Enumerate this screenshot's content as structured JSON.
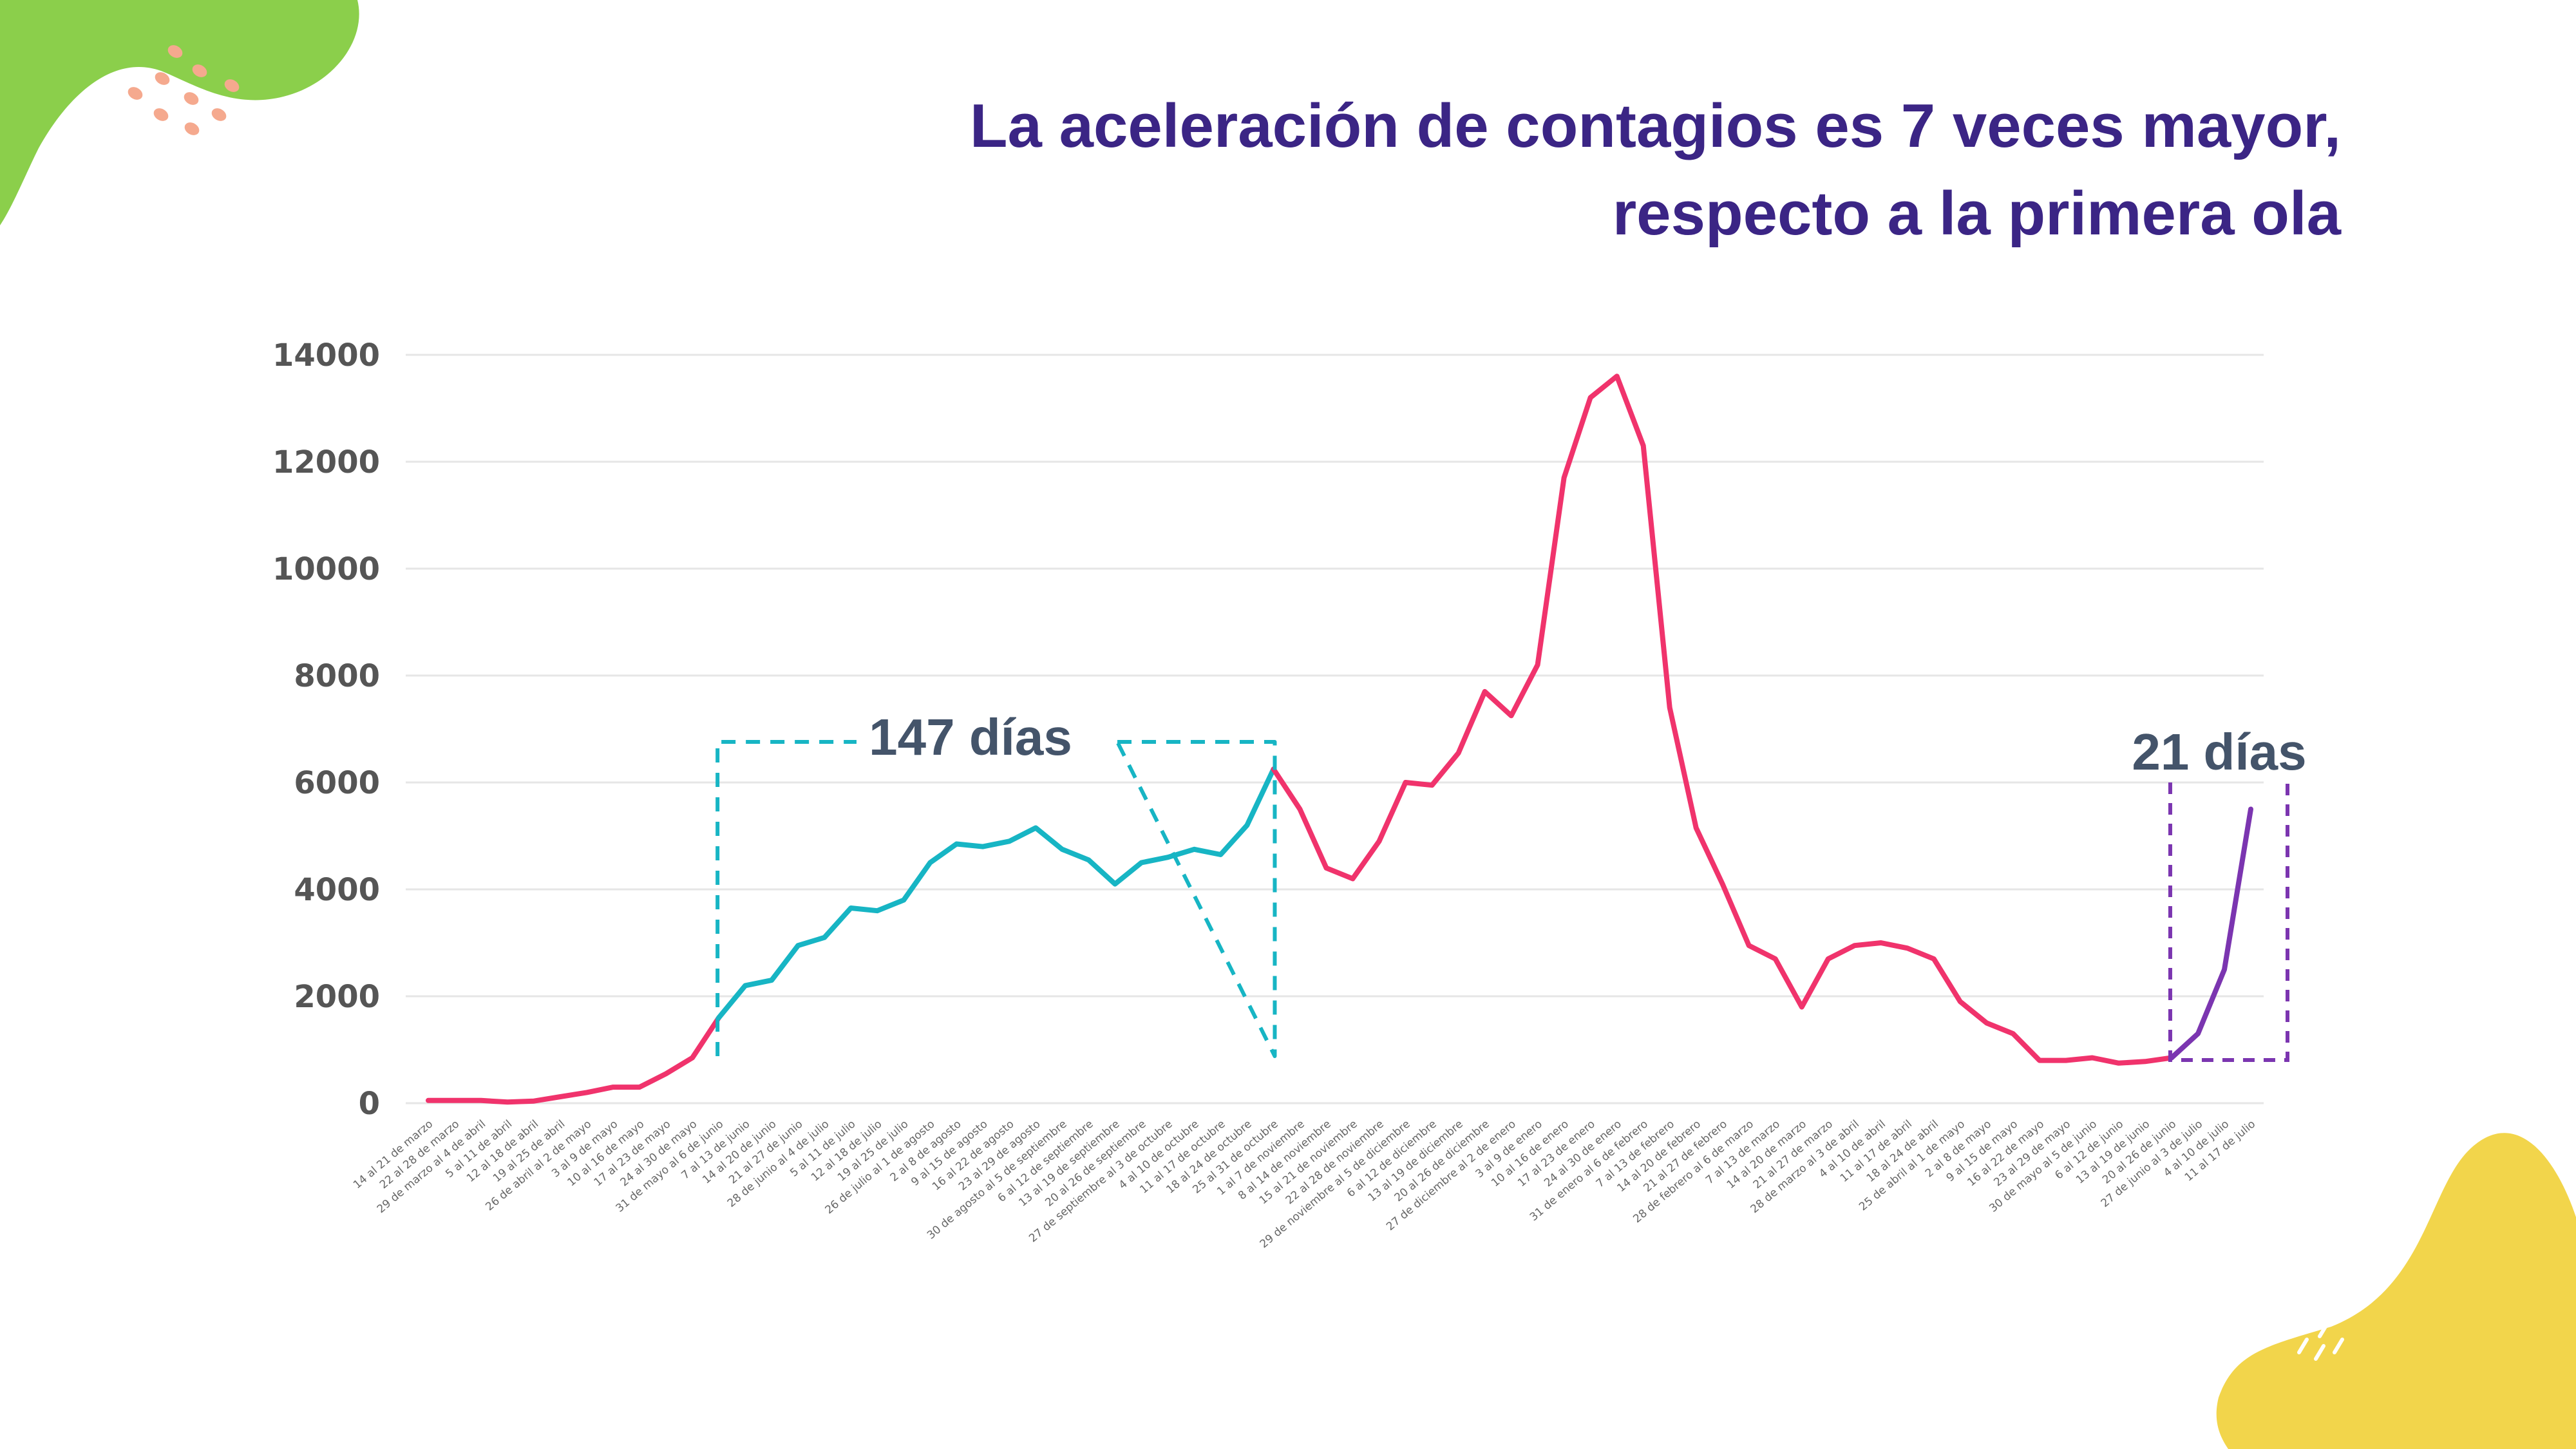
{
  "title": {
    "line1": "La aceleración de contagios es 7 veces mayor,",
    "line2": "respecto a la primera ola"
  },
  "colors": {
    "title": "#3b2585",
    "line_main": "#f0336c",
    "line_first_wave": "#17b5c4",
    "line_recent": "#7b35b0",
    "annotation_text": "#44546a",
    "blob_green": "#8bcf4b",
    "blob_yellow": "#f2d54b",
    "dots_salmon": "#f5a98e"
  },
  "chart_data": {
    "type": "line",
    "title": "",
    "xlabel": "",
    "ylabel": "",
    "ylim": [
      0,
      14000
    ],
    "yticks": [
      0,
      2000,
      4000,
      6000,
      8000,
      10000,
      12000,
      14000
    ],
    "grid": true,
    "legend": "none",
    "categories": [
      "14 al 21 de marzo",
      "22 al 28 de marzo",
      "29 de marzo al 4 de abril",
      "5 al 11 de abril",
      "12 al 18 de abril",
      "19 al 25 de abril",
      "26 de abril al 2 de mayo",
      "3 al 9 de mayo",
      "10 al 16 de mayo",
      "17 al 23 de mayo",
      "24 al 30 de mayo",
      "31 de mayo al 6 de junio",
      "7 al 13 de junio",
      "14 al 20 de junio",
      "21 al 27 de junio",
      "28 de junio al 4 de julio",
      "5 al 11 de julio",
      "12 al 18 de julio",
      "19 al 25 de julio",
      "26 de julio al 1 de agosto",
      "2 al 8 de agosto",
      "9 al 15 de agosto",
      "16 al 22 de agosto",
      "23 al 29 de agosto",
      "30 de agosto al 5 de septiembre",
      "6 al 12 de septiembre",
      "13 al 19 de septiembre",
      "20 al 26 de septiembre",
      "27 de septiembre al 3 de octubre",
      "4 al 10 de octubre",
      "11 al 17 de octubre",
      "18 al 24 de octubre",
      "25 al 31 de octubre",
      "1 al 7 de noviembre",
      "8 al 14 de noviembre",
      "15 al 21 de noviembre",
      "22 al 28 de noviembre",
      "29 de noviembre al 5 de diciembre",
      "6 al 12 de diciembre",
      "13 al 19 de diciembre",
      "20 al 26 de diciembre",
      "27 de diciembre al 2 de enero",
      "3 al 9 de enero",
      "10 al 16 de enero",
      "17 al 23 de enero",
      "24 al 30 de enero",
      "31 de enero al 6 de febrero",
      "7 al 13 de febrero",
      "14 al 20 de febrero",
      "21 al 27 de febrero",
      "28 de febrero al 6 de marzo",
      "7 al 13 de marzo",
      "14 al 20 de marzo",
      "21 al 27 de marzo",
      "28 de marzo al 3 de abril",
      "4 al 10 de abril",
      "11 al 17 de abril",
      "18 al 24 de abril",
      "25 de abril al 1 de mayo",
      "2 al 8 de mayo",
      "9 al 15 de mayo",
      "16 al 22 de mayo",
      "23 al 29 de mayo",
      "30 de mayo al 5 de junio",
      "6 al 12 de junio",
      "13 al 19 de junio",
      "20 al 26 de junio",
      "27 de junio al 3 de julio",
      "4 al 10 de julio",
      "11 al 17 de julio"
    ],
    "values": [
      50,
      50,
      50,
      20,
      40,
      120,
      200,
      300,
      300,
      550,
      850,
      1600,
      2200,
      2300,
      2950,
      3100,
      3650,
      3600,
      3800,
      4500,
      4850,
      4800,
      4900,
      5150,
      4750,
      4550,
      4100,
      4500,
      4600,
      4750,
      4650,
      5200,
      6250,
      5500,
      4400,
      4200,
      4900,
      6000,
      5950,
      6550,
      7700,
      7250,
      8200,
      11700,
      13200,
      13600,
      12300,
      7400,
      5150,
      4100,
      2950,
      2700,
      1800,
      2700,
      2950,
      3000,
      2900,
      2700,
      1900,
      1500,
      1300,
      800,
      800,
      850,
      750,
      780,
      850,
      1300,
      2500,
      5500
    ],
    "segments": [
      {
        "range": [
          0,
          11
        ],
        "color": "#f0336c"
      },
      {
        "range": [
          11,
          32
        ],
        "color": "#17b5c4"
      },
      {
        "range": [
          32,
          66
        ],
        "color": "#f0336c"
      },
      {
        "range": [
          66,
          69
        ],
        "color": "#7b35b0"
      }
    ],
    "annotations": [
      {
        "text": "147 días",
        "from_index": 11,
        "to_index": 32,
        "color": "#17b5c4"
      },
      {
        "text": "21 días",
        "from_index": 66,
        "to_index": 69,
        "color": "#7b35b0"
      }
    ]
  }
}
